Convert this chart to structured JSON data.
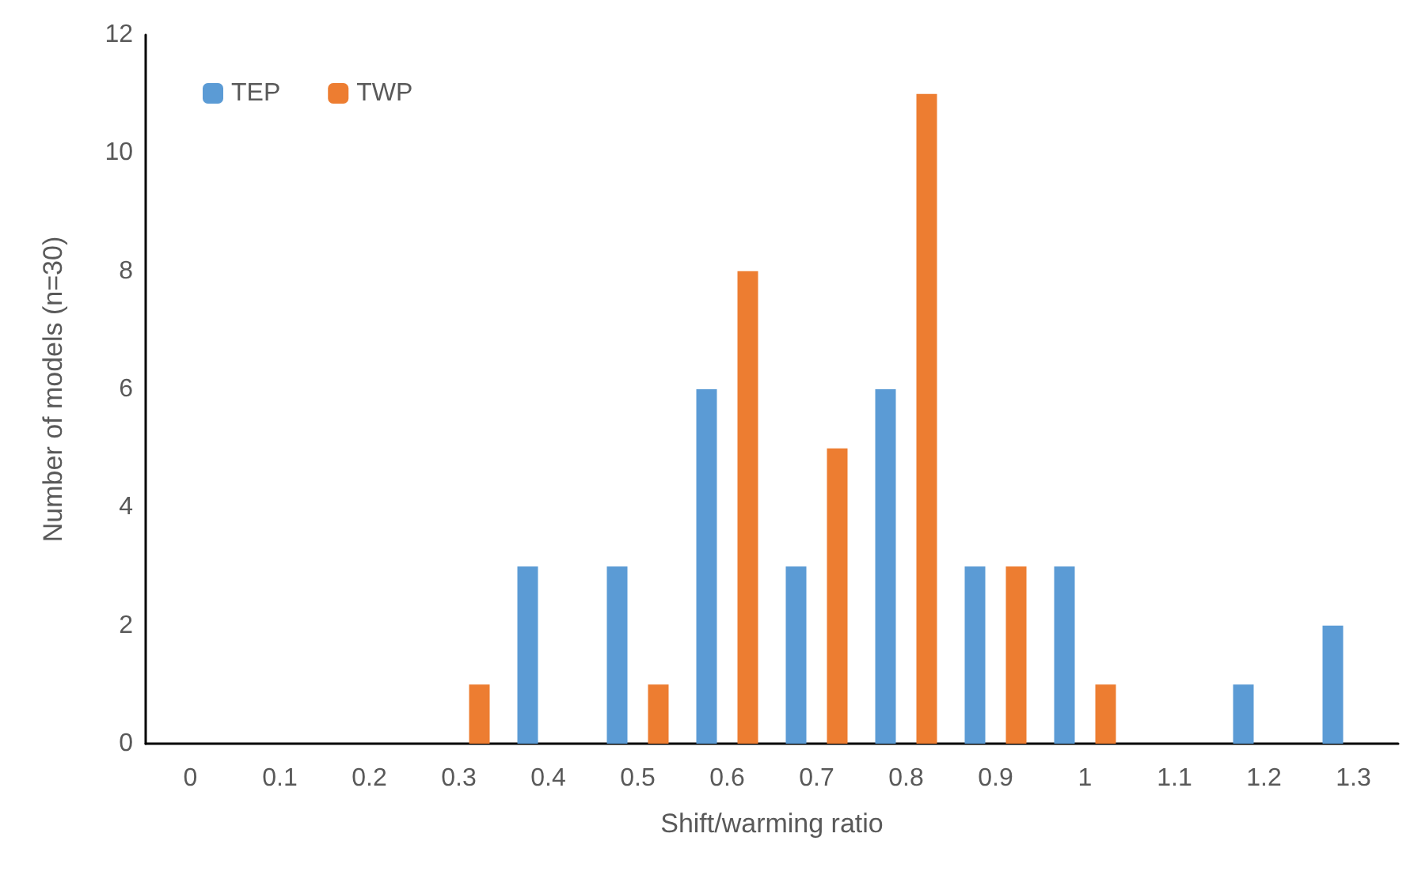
{
  "chart_data": {
    "type": "bar",
    "xlabel": "Shift/warming ratio",
    "ylabel": "Number of models (n=30)",
    "categories": [
      "0",
      "0.1",
      "0.2",
      "0.3",
      "0.4",
      "0.5",
      "0.6",
      "0.7",
      "0.8",
      "0.9",
      "1",
      "1.1",
      "1.2",
      "1.3"
    ],
    "series": [
      {
        "name": "TEP",
        "color": "#5b9bd5",
        "values": [
          0,
          0,
          0,
          0,
          3,
          3,
          6,
          3,
          6,
          3,
          3,
          0,
          1,
          2
        ]
      },
      {
        "name": "TWP",
        "color": "#ed7d31",
        "values": [
          0,
          0,
          0,
          1,
          0,
          1,
          8,
          5,
          11,
          3,
          1,
          0,
          0,
          0
        ]
      }
    ],
    "ylim": [
      0,
      12
    ],
    "yticks": [
      0,
      2,
      4,
      6,
      8,
      10,
      12
    ],
    "grid": false,
    "legend": "top left"
  }
}
